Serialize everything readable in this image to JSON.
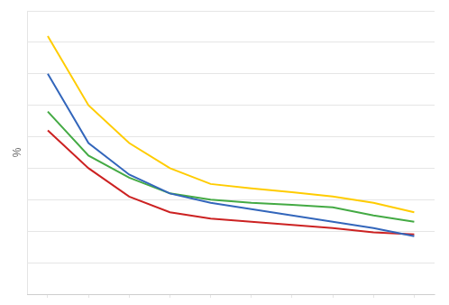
{
  "chart_data": {
    "type": "line",
    "ylabel": "%",
    "x": [
      1,
      2,
      3,
      4,
      5,
      6,
      7,
      8,
      9,
      10
    ],
    "series": [
      {
        "color": "#3366BB",
        "values": [
          35,
          24,
          19,
          16,
          14.5,
          13.5,
          12.5,
          11.5,
          10.5,
          9.2
        ]
      },
      {
        "color": "#FFCC00",
        "values": [
          41,
          30,
          24,
          20,
          17.5,
          16.8,
          16.2,
          15.5,
          14.5,
          13.0
        ]
      },
      {
        "color": "#CC2222",
        "values": [
          26,
          20,
          15.5,
          13,
          12,
          11.5,
          11,
          10.5,
          9.8,
          9.5
        ]
      },
      {
        "color": "#44AA44",
        "values": [
          29,
          22,
          18.5,
          16,
          15,
          14.5,
          14.2,
          13.8,
          12.5,
          11.5
        ]
      }
    ],
    "xlim": [
      0.5,
      10.5
    ],
    "xticks": [
      1,
      2,
      3,
      4,
      5,
      6,
      7,
      8,
      9,
      10
    ],
    "ylim": [
      0,
      45
    ],
    "yticks": [
      0,
      5,
      10,
      15,
      20,
      25,
      30,
      35,
      40,
      45
    ],
    "grid": "y",
    "tick_labels": false
  }
}
